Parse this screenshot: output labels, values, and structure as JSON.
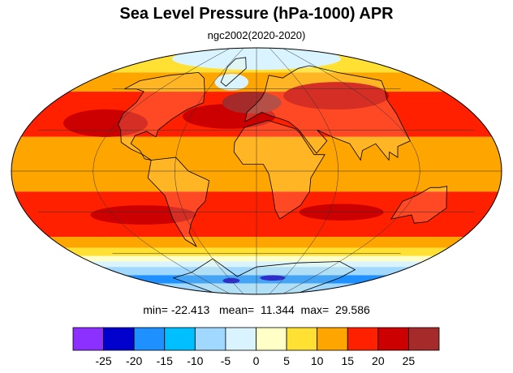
{
  "title": "Sea Level Pressure (hPa-1000) APR",
  "subtitle": "ngc2002(2020-2020)",
  "stats": {
    "min_label": "min=",
    "min": "-22.413",
    "mean_label": "mean=",
    "mean": "11.344",
    "max_label": "max=",
    "max": "29.586"
  },
  "colorbar": {
    "colors": [
      "#8c30ff",
      "#0000cc",
      "#1e90ff",
      "#00bfff",
      "#a0d8ff",
      "#d9f4ff",
      "#ffffc8",
      "#ffe033",
      "#ffa500",
      "#ff2000",
      "#cc0000",
      "#a52a2a"
    ],
    "ticks": [
      "-25",
      "-20",
      "-15",
      "-10",
      "-5",
      "0",
      "5",
      "10",
      "15",
      "20",
      "25"
    ]
  },
  "map": {
    "ocean_bands": [
      {
        "lat_from": 90,
        "lat_to": 72,
        "color": "#ffe033"
      },
      {
        "lat_from": 72,
        "lat_to": 58,
        "color": "#ffa500"
      },
      {
        "lat_from": 58,
        "lat_to": 25,
        "color": "#ff2000"
      },
      {
        "lat_from": 25,
        "lat_to": -15,
        "color": "#ffa500"
      },
      {
        "lat_from": -15,
        "lat_to": -48,
        "color": "#ff2000"
      },
      {
        "lat_from": -48,
        "lat_to": -56,
        "color": "#ffa500"
      },
      {
        "lat_from": -56,
        "lat_to": -62,
        "color": "#ffe033"
      },
      {
        "lat_from": -62,
        "lat_to": -66,
        "color": "#ffffc8"
      },
      {
        "lat_from": -66,
        "lat_to": -70,
        "color": "#d9f4ff"
      },
      {
        "lat_from": -70,
        "lat_to": -76,
        "color": "#a0d8ff"
      },
      {
        "lat_from": -76,
        "lat_to": -82,
        "color": "#1e90ff"
      },
      {
        "lat_from": -82,
        "lat_to": -90,
        "color": "#a0d8ff"
      }
    ],
    "highs": [
      {
        "lon": -25,
        "lat": 40,
        "rx": 22,
        "ry": 9,
        "color": "#cc0000"
      },
      {
        "lon": -5,
        "lat": 50,
        "rx": 14,
        "ry": 8,
        "color": "#a52a2a"
      },
      {
        "lon": 90,
        "lat": 55,
        "rx": 25,
        "ry": 10,
        "color": "#cc0000"
      },
      {
        "lon": -130,
        "lat": 35,
        "rx": 20,
        "ry": 10,
        "color": "#cc0000"
      },
      {
        "lon": -95,
        "lat": -32,
        "rx": 25,
        "ry": 7,
        "color": "#cc0000"
      },
      {
        "lon": 70,
        "lat": -30,
        "rx": 20,
        "ry": 6,
        "color": "#cc0000"
      }
    ],
    "lows": [
      {
        "lon": 35,
        "lat": -78,
        "rx": 6,
        "ry": 2,
        "color": "#0000cc"
      },
      {
        "lon": -60,
        "lat": -80,
        "rx": 4,
        "ry": 2,
        "color": "#0000cc"
      },
      {
        "lon": -35,
        "lat": 65,
        "rx": 8,
        "ry": 6,
        "color": "#d9f4ff"
      },
      {
        "lon": 0,
        "lat": 82,
        "rx": 40,
        "ry": 8,
        "color": "#d9f4ff"
      }
    ]
  }
}
